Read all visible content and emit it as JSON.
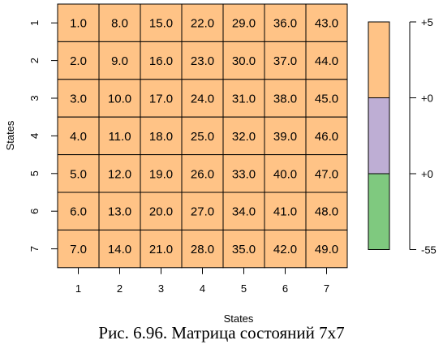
{
  "chart_data": {
    "type": "heatmap",
    "rows": [
      "1",
      "2",
      "3",
      "4",
      "5",
      "6",
      "7"
    ],
    "columns": [
      "1",
      "2",
      "3",
      "4",
      "5",
      "6",
      "7"
    ],
    "values": [
      [
        "1.0",
        "8.0",
        "15.0",
        "22.0",
        "29.0",
        "36.0",
        "43.0"
      ],
      [
        "2.0",
        "9.0",
        "16.0",
        "23.0",
        "30.0",
        "37.0",
        "44.0"
      ],
      [
        "3.0",
        "10.0",
        "17.0",
        "24.0",
        "31.0",
        "38.0",
        "45.0"
      ],
      [
        "4.0",
        "11.0",
        "18.0",
        "25.0",
        "32.0",
        "39.0",
        "46.0"
      ],
      [
        "5.0",
        "12.0",
        "19.0",
        "26.0",
        "33.0",
        "40.0",
        "47.0"
      ],
      [
        "6.0",
        "13.0",
        "20.0",
        "27.0",
        "34.0",
        "41.0",
        "48.0"
      ],
      [
        "7.0",
        "14.0",
        "21.0",
        "28.0",
        "35.0",
        "42.0",
        "49.0"
      ]
    ],
    "cell_color": "#ffc386",
    "xlabel": "States",
    "ylabel": "States",
    "legend": {
      "segments": [
        {
          "color": "#ffc386"
        },
        {
          "color": "#beaed4"
        },
        {
          "color": "#7fc97f"
        }
      ],
      "tick_labels": [
        "+5",
        "+0",
        "+0",
        "-55"
      ]
    }
  },
  "caption": "Рис. 6.96. Матрица состояний 7x7"
}
